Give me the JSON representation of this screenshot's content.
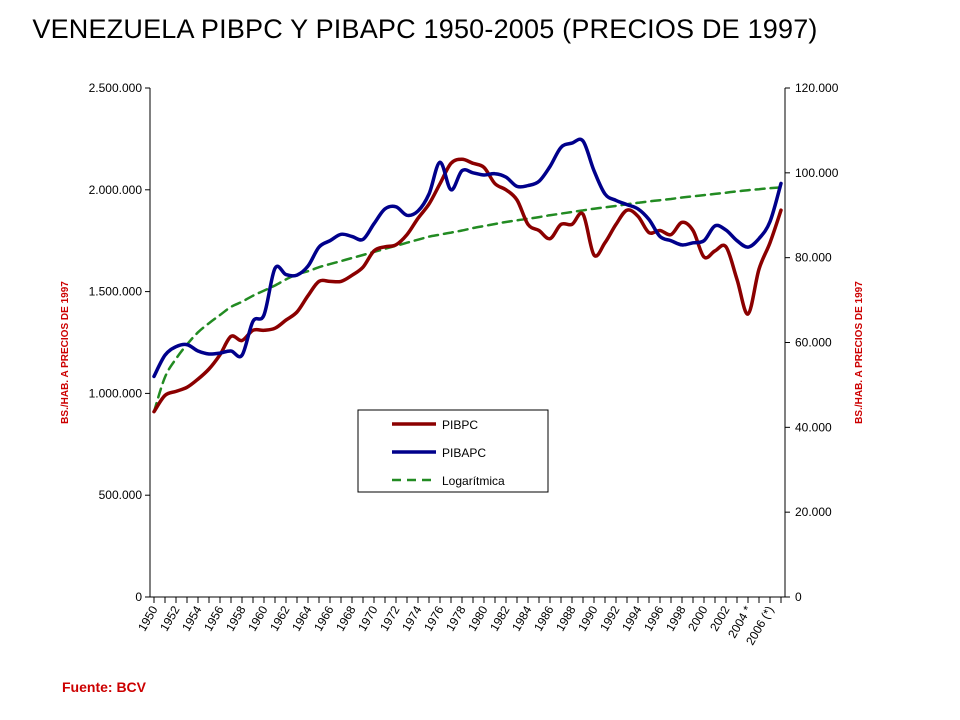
{
  "chart_data": {
    "type": "line",
    "title": "VENEZUELA PIBPC Y PIBAPC 1950-2005 (PRECIOS DE 1997)",
    "source": "Fuente: BCV",
    "y_left": {
      "label": "BS./HAB. A PRECIOS DE 1997",
      "range": [
        0,
        2500000
      ],
      "ticks": [
        "0",
        "500.000",
        "1.000.000",
        "1.500.000",
        "2.000.000",
        "2.500.000"
      ],
      "tick_values": [
        0,
        500000,
        1000000,
        1500000,
        2000000,
        2500000
      ]
    },
    "y_right": {
      "label": "BS./HAB. A PRECIOS DE 1997",
      "range": [
        0,
        120000
      ],
      "ticks": [
        "0",
        "20.000",
        "40.000",
        "60.000",
        "80.000",
        "100.000",
        "120.000"
      ],
      "tick_values": [
        0,
        20000,
        40000,
        60000,
        80000,
        100000,
        120000
      ]
    },
    "x_tick_labels": [
      "1950",
      "1952",
      "1954",
      "1956",
      "1958",
      "1960",
      "1962",
      "1964",
      "1966",
      "1968",
      "1970",
      "1972",
      "1974",
      "1976",
      "1978",
      "1980",
      "1982",
      "1984",
      "1986",
      "1988",
      "1990",
      "1992",
      "1994",
      "1996",
      "1998",
      "2000",
      "2002",
      "2004 *",
      "2006 (*)"
    ],
    "x": [
      1950,
      1951,
      1952,
      1953,
      1954,
      1955,
      1956,
      1957,
      1958,
      1959,
      1960,
      1961,
      1962,
      1963,
      1964,
      1965,
      1966,
      1967,
      1968,
      1969,
      1970,
      1971,
      1972,
      1973,
      1974,
      1975,
      1976,
      1977,
      1978,
      1979,
      1980,
      1981,
      1982,
      1983,
      1984,
      1985,
      1986,
      1987,
      1988,
      1989,
      1990,
      1991,
      1992,
      1993,
      1994,
      1995,
      1996,
      1997,
      1998,
      1999,
      2000,
      2001,
      2002,
      2003,
      2004,
      2005,
      2006,
      2007
    ],
    "series": [
      {
        "name": "PIBPC",
        "color": "#8b0000",
        "dash": false,
        "axis": "left",
        "values": [
          910000,
          990000,
          1010000,
          1030000,
          1070000,
          1120000,
          1190000,
          1280000,
          1260000,
          1310000,
          1310000,
          1320000,
          1360000,
          1400000,
          1480000,
          1550000,
          1550000,
          1550000,
          1580000,
          1620000,
          1700000,
          1720000,
          1730000,
          1780000,
          1860000,
          1930000,
          2030000,
          2130000,
          2150000,
          2130000,
          2110000,
          2030000,
          2000000,
          1950000,
          1830000,
          1800000,
          1760000,
          1830000,
          1830000,
          1880000,
          1680000,
          1740000,
          1830000,
          1900000,
          1870000,
          1790000,
          1800000,
          1780000,
          1840000,
          1800000,
          1670000,
          1700000,
          1720000,
          1560000,
          1390000,
          1610000,
          1740000,
          1900000
        ]
      },
      {
        "name": "PIBAPC",
        "color": "#00008b",
        "dash": false,
        "axis": "right",
        "values": [
          52000,
          57000,
          59000,
          59500,
          58000,
          57300,
          57500,
          58000,
          57000,
          65000,
          66500,
          77500,
          76000,
          75900,
          78000,
          82500,
          84000,
          85500,
          85000,
          84300,
          88000,
          91500,
          92000,
          90000,
          91000,
          95000,
          102500,
          96000,
          100500,
          100000,
          99500,
          99800,
          99000,
          96800,
          97000,
          98000,
          101500,
          106000,
          107000,
          107500,
          100500,
          95000,
          93500,
          92500,
          91500,
          89000,
          85000,
          84000,
          83000,
          83500,
          84000,
          87500,
          86500,
          84000,
          82500,
          84500,
          88500,
          97500
        ]
      },
      {
        "name": "Logarítmica",
        "color": "#228b22",
        "dash": true,
        "axis": "left",
        "values": [
          910000,
          1080000,
          1170000,
          1240000,
          1300000,
          1345000,
          1385000,
          1425000,
          1450000,
          1480000,
          1505000,
          1530000,
          1560000,
          1585000,
          1600000,
          1620000,
          1635000,
          1650000,
          1665000,
          1680000,
          1695000,
          1710000,
          1725000,
          1740000,
          1755000,
          1770000,
          1780000,
          1790000,
          1800000,
          1812000,
          1822000,
          1832000,
          1842000,
          1850000,
          1858000,
          1866000,
          1875000,
          1883000,
          1891000,
          1899000,
          1907000,
          1914000,
          1921000,
          1929000,
          1936000,
          1943000,
          1949000,
          1955000,
          1962000,
          1968000,
          1974000,
          1980000,
          1986000,
          1992000,
          1998000,
          2003000,
          2008000,
          2012000
        ]
      }
    ],
    "legend": {
      "position": "center",
      "entries": [
        "PIBPC",
        "PIBAPC",
        "Logarítmica"
      ]
    },
    "grid": false
  }
}
